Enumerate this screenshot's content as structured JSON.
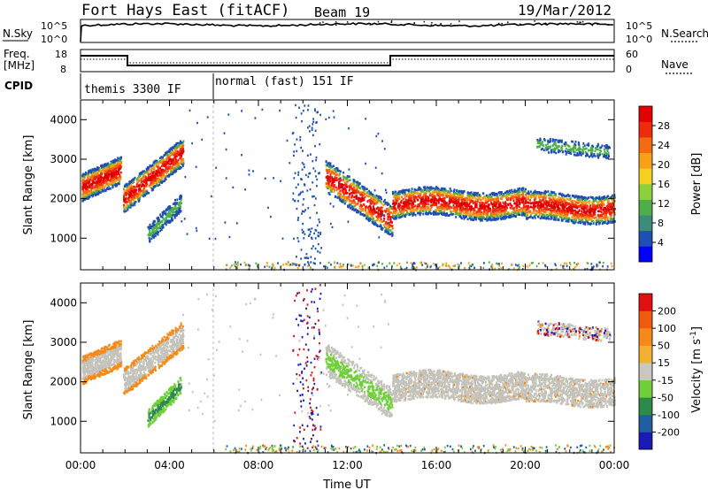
{
  "header": {
    "radar": "Fort Hays East (fitACF)",
    "beam": "Beam 19",
    "date": "19/Mar/2012"
  },
  "noise_panel": {
    "left_label": "N.Sky",
    "right_label": "N.Search",
    "left_ticks": [
      "10^5",
      "10^0"
    ],
    "right_ticks": [
      "10^5",
      "10^0"
    ]
  },
  "freq_panel": {
    "left_label_1": "Freq.",
    "left_label_2": "[MHz]",
    "left_ticks": [
      "18",
      "8"
    ],
    "right_label": "Nave",
    "right_ticks": [
      "60",
      "0"
    ]
  },
  "cpid": {
    "label": "CPID",
    "segments": [
      {
        "name": "themis 3300 IF",
        "start_hour": 0,
        "end_hour": 6
      },
      {
        "name": "normal (fast) 151 IF",
        "start_hour": 6,
        "end_hour": 24
      }
    ]
  },
  "chart_data": [
    {
      "type": "heatmap",
      "name": "power",
      "ylabel": "Slant Range [km]",
      "xlabel": "",
      "xlim": [
        0,
        24
      ],
      "ylim": [
        200,
        4500
      ],
      "yticks": [
        1000,
        2000,
        3000,
        4000
      ],
      "colorbar": {
        "label": "Power [dB]",
        "ticks": [
          "4",
          "8",
          "12",
          "16",
          "20",
          "24",
          "28"
        ],
        "colors": [
          "#0000ff",
          "#1f4fb4",
          "#3c8c78",
          "#4fae4a",
          "#8ed03b",
          "#f6d020",
          "#f7a018",
          "#f36a10",
          "#ee2c0c",
          "#e30000"
        ]
      }
    },
    {
      "type": "heatmap",
      "name": "velocity",
      "ylabel": "Slant Range [km]",
      "xlabel": "Time UT",
      "xlim": [
        0,
        24
      ],
      "ylim": [
        200,
        4500
      ],
      "yticks": [
        1000,
        2000,
        3000,
        4000
      ],
      "xticks": [
        "00:00",
        "04:00",
        "08:00",
        "12:00",
        "16:00",
        "20:00",
        "00:00"
      ],
      "colorbar": {
        "label": "Velocity [m s",
        "label_sup": "-1",
        "label_end": "]",
        "ticks": [
          "200",
          "100",
          "50",
          "15",
          "-15",
          "-50",
          "-100",
          "-200"
        ],
        "colors": [
          "#1a1ab4",
          "#1f5fa0",
          "#2e8a4a",
          "#6fcf3a",
          "#c8c8c0",
          "#f4b030",
          "#f58a1a",
          "#f05a10",
          "#e31010"
        ]
      }
    }
  ],
  "colors": {
    "gray_scatter": "#c3c3bb",
    "red": "#e8200c",
    "orange": "#f49a18",
    "green": "#4fae4a",
    "blue": "#1f3fb4"
  }
}
